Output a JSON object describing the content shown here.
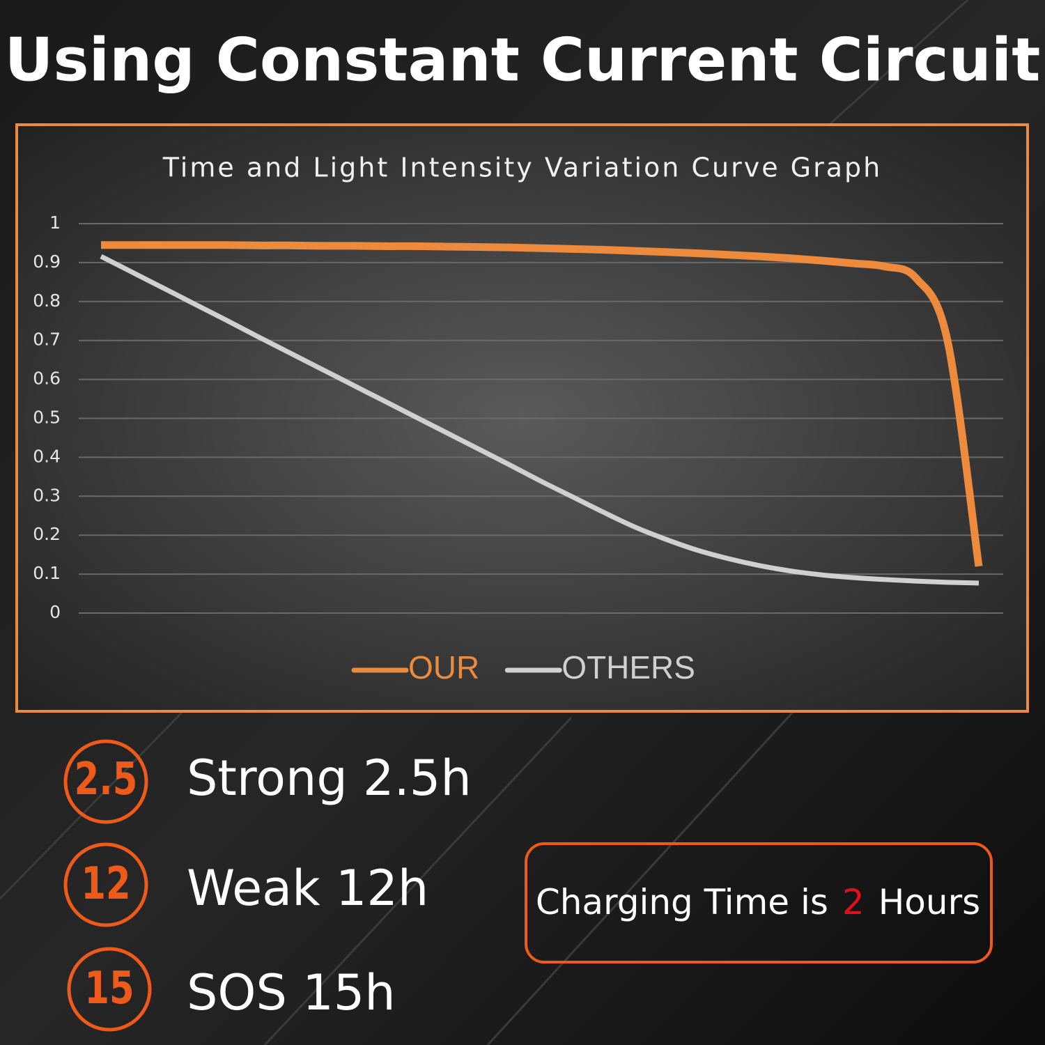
{
  "header": {
    "title": "Using Constant Current Circuit"
  },
  "chart_data": {
    "type": "line",
    "title": "Time and Light Intensity Variation Curve Graph",
    "categories": [
      null,
      null,
      null,
      null,
      null,
      null,
      null,
      null,
      null,
      null,
      null,
      null,
      null,
      null,
      null,
      null,
      null,
      null,
      null,
      null,
      null,
      null,
      null,
      null,
      null,
      null,
      null,
      null,
      null
    ],
    "series": [
      {
        "name": "OUR",
        "color": "#ee8a3c",
        "values": [
          0.945,
          0.945,
          0.945,
          0.945,
          0.945,
          0.944,
          0.944,
          0.943,
          0.943,
          0.942,
          0.942,
          0.941,
          0.94,
          0.939,
          0.937,
          0.935,
          0.933,
          0.93,
          0.927,
          0.924,
          0.92,
          0.916,
          0.911,
          0.905,
          0.898,
          0.89,
          0.86,
          0.7,
          0.12
        ]
      },
      {
        "name": "OTHERS",
        "color": "#d0d0d0",
        "values": [
          0.916,
          0.875,
          0.834,
          0.793,
          0.752,
          0.71,
          0.669,
          0.628,
          0.587,
          0.546,
          0.505,
          0.464,
          0.423,
          0.382,
          0.34,
          0.3,
          0.26,
          0.222,
          0.19,
          0.162,
          0.14,
          0.122,
          0.108,
          0.098,
          0.091,
          0.086,
          0.082,
          0.079,
          0.077
        ]
      }
    ],
    "ylim": [
      0,
      1
    ],
    "yticks": [
      0,
      0.1,
      0.2,
      0.3,
      0.4,
      0.5,
      0.6,
      0.7,
      0.8,
      0.9,
      1
    ],
    "grid": true,
    "legend": "bottom"
  },
  "modes": [
    {
      "icon": "2.5",
      "label": "Strong 2.5h"
    },
    {
      "icon": "12",
      "label": "Weak 12h"
    },
    {
      "icon": "15",
      "label": "SOS 15h"
    }
  ],
  "charging": {
    "prefix": "Charging Time is",
    "highlight": "2",
    "suffix": "Hours"
  }
}
